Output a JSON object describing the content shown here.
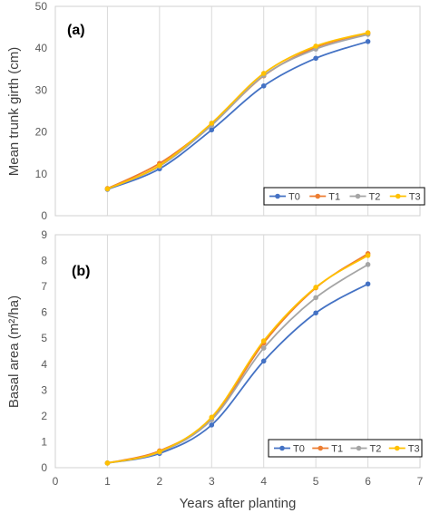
{
  "chart_data": [
    {
      "type": "line",
      "panel_label": "(a)",
      "xlabel": "",
      "ylabel": "Mean trunk girth (cm)",
      "x": [
        1,
        2,
        3,
        4,
        5,
        6
      ],
      "xlim": [
        1,
        6.5
      ],
      "ylim": [
        0,
        50
      ],
      "yticks": [
        0,
        10,
        20,
        30,
        40,
        50
      ],
      "grid": "vertical",
      "legend_placement": "bottom-right",
      "series": [
        {
          "name": "T0",
          "color": "#4472c4",
          "values": [
            6.3,
            11.2,
            20.5,
            31.0,
            37.6,
            41.6
          ]
        },
        {
          "name": "T1",
          "color": "#ed7d31",
          "values": [
            6.5,
            12.5,
            21.8,
            33.4,
            40.2,
            43.6
          ]
        },
        {
          "name": "T2",
          "color": "#a5a5a5",
          "values": [
            6.4,
            11.8,
            21.6,
            33.5,
            39.8,
            43.3
          ]
        },
        {
          "name": "T3",
          "color": "#ffc000",
          "values": [
            6.4,
            12.0,
            22.1,
            34.0,
            40.5,
            43.7
          ]
        }
      ]
    },
    {
      "type": "line",
      "panel_label": "(b)",
      "xlabel": "Years after planting",
      "ylabel": "Basal area (m²/ha)",
      "x": [
        1,
        2,
        3,
        4,
        5,
        6
      ],
      "xlim": [
        0,
        7
      ],
      "xticks": [
        0,
        1,
        2,
        3,
        4,
        5,
        6,
        7
      ],
      "ylim": [
        0,
        9
      ],
      "yticks": [
        0,
        1,
        2,
        3,
        4,
        5,
        6,
        7,
        8,
        9
      ],
      "grid": "vertical",
      "legend_placement": "bottom-right",
      "series": [
        {
          "name": "T0",
          "color": "#4472c4",
          "values": [
            0.18,
            0.55,
            1.65,
            4.12,
            5.98,
            7.1
          ]
        },
        {
          "name": "T1",
          "color": "#ed7d31",
          "values": [
            0.18,
            0.65,
            1.88,
            4.82,
            6.95,
            8.27
          ]
        },
        {
          "name": "T2",
          "color": "#a5a5a5",
          "values": [
            0.18,
            0.6,
            1.85,
            4.62,
            6.57,
            7.85
          ]
        },
        {
          "name": "T3",
          "color": "#ffc000",
          "values": [
            0.18,
            0.62,
            1.95,
            4.9,
            6.97,
            8.2
          ]
        }
      ]
    }
  ]
}
